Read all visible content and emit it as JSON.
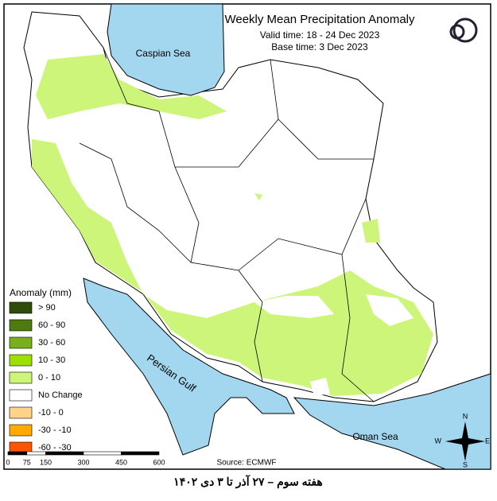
{
  "header": {
    "title": "Weekly Mean Precipitation Anomaly",
    "valid_time": "Valid time: 18 - 24 Dec 2023",
    "base_time": "Base time: 3 Dec 2023"
  },
  "labels": {
    "caspian": "Caspian Sea",
    "gulf": "Persian Gulf",
    "oman": "Oman Sea"
  },
  "legend": {
    "title": "Anomaly (mm)",
    "items": [
      {
        "label": "> 90",
        "color": "#2f4d0a"
      },
      {
        "label": "60 - 90",
        "color": "#4f7a12"
      },
      {
        "label": "30 - 60",
        "color": "#78b01c"
      },
      {
        "label": "10 - 30",
        "color": "#9de000"
      },
      {
        "label": "0 - 10",
        "color": "#ccf57a"
      },
      {
        "label": "No Change",
        "color": "#ffffff"
      },
      {
        "label": "-10 - 0",
        "color": "#ffd38a"
      },
      {
        "label": "-30 - -10",
        "color": "#ffaa00"
      },
      {
        "label": "-60 - -30",
        "color": "#ff5500"
      }
    ]
  },
  "scale": {
    "ticks": [
      0,
      75,
      150,
      300,
      450,
      600
    ]
  },
  "source": "Source: ECMWF",
  "compass": {
    "n": "N",
    "e": "E",
    "s": "S",
    "w": "W"
  },
  "caption": "هفته سوم – ۲۷ آذر تا ۳ دی ۱۴۰۲"
}
